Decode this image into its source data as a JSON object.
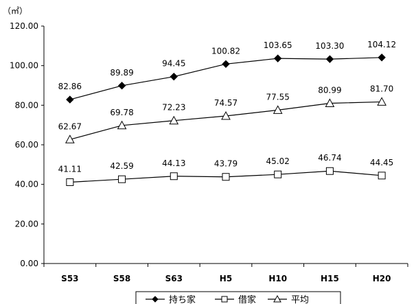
{
  "chart_data": {
    "type": "line",
    "unit": "（㎡）",
    "categories": [
      "S53",
      "S58",
      "S63",
      "H5",
      "H10",
      "H15",
      "H20"
    ],
    "ylim": [
      0,
      120
    ],
    "yticks": [
      "0.00",
      "20.00",
      "40.00",
      "60.00",
      "80.00",
      "100.00",
      "120.00"
    ],
    "grid": false,
    "legend_position": "bottom",
    "series": [
      {
        "name": "持ち家",
        "marker": "filled-diamond",
        "values": [
          82.86,
          89.89,
          94.45,
          100.82,
          103.65,
          103.3,
          104.12
        ],
        "labels": [
          "82.86",
          "89.89",
          "94.45",
          "100.82",
          "103.65",
          "103.30",
          "104.12"
        ]
      },
      {
        "name": "借家",
        "marker": "open-square",
        "values": [
          41.11,
          42.59,
          44.13,
          43.79,
          45.02,
          46.74,
          44.45
        ],
        "labels": [
          "41.11",
          "42.59",
          "44.13",
          "43.79",
          "45.02",
          "46.74",
          "44.45"
        ]
      },
      {
        "name": "平均",
        "marker": "open-triangle",
        "values": [
          62.67,
          69.78,
          72.23,
          74.57,
          77.55,
          80.99,
          81.7
        ],
        "labels": [
          "62.67",
          "69.78",
          "72.23",
          "74.57",
          "77.55",
          "80.99",
          "81.70"
        ]
      }
    ],
    "colors": {
      "line": "#000000",
      "background": "#ffffff"
    }
  }
}
